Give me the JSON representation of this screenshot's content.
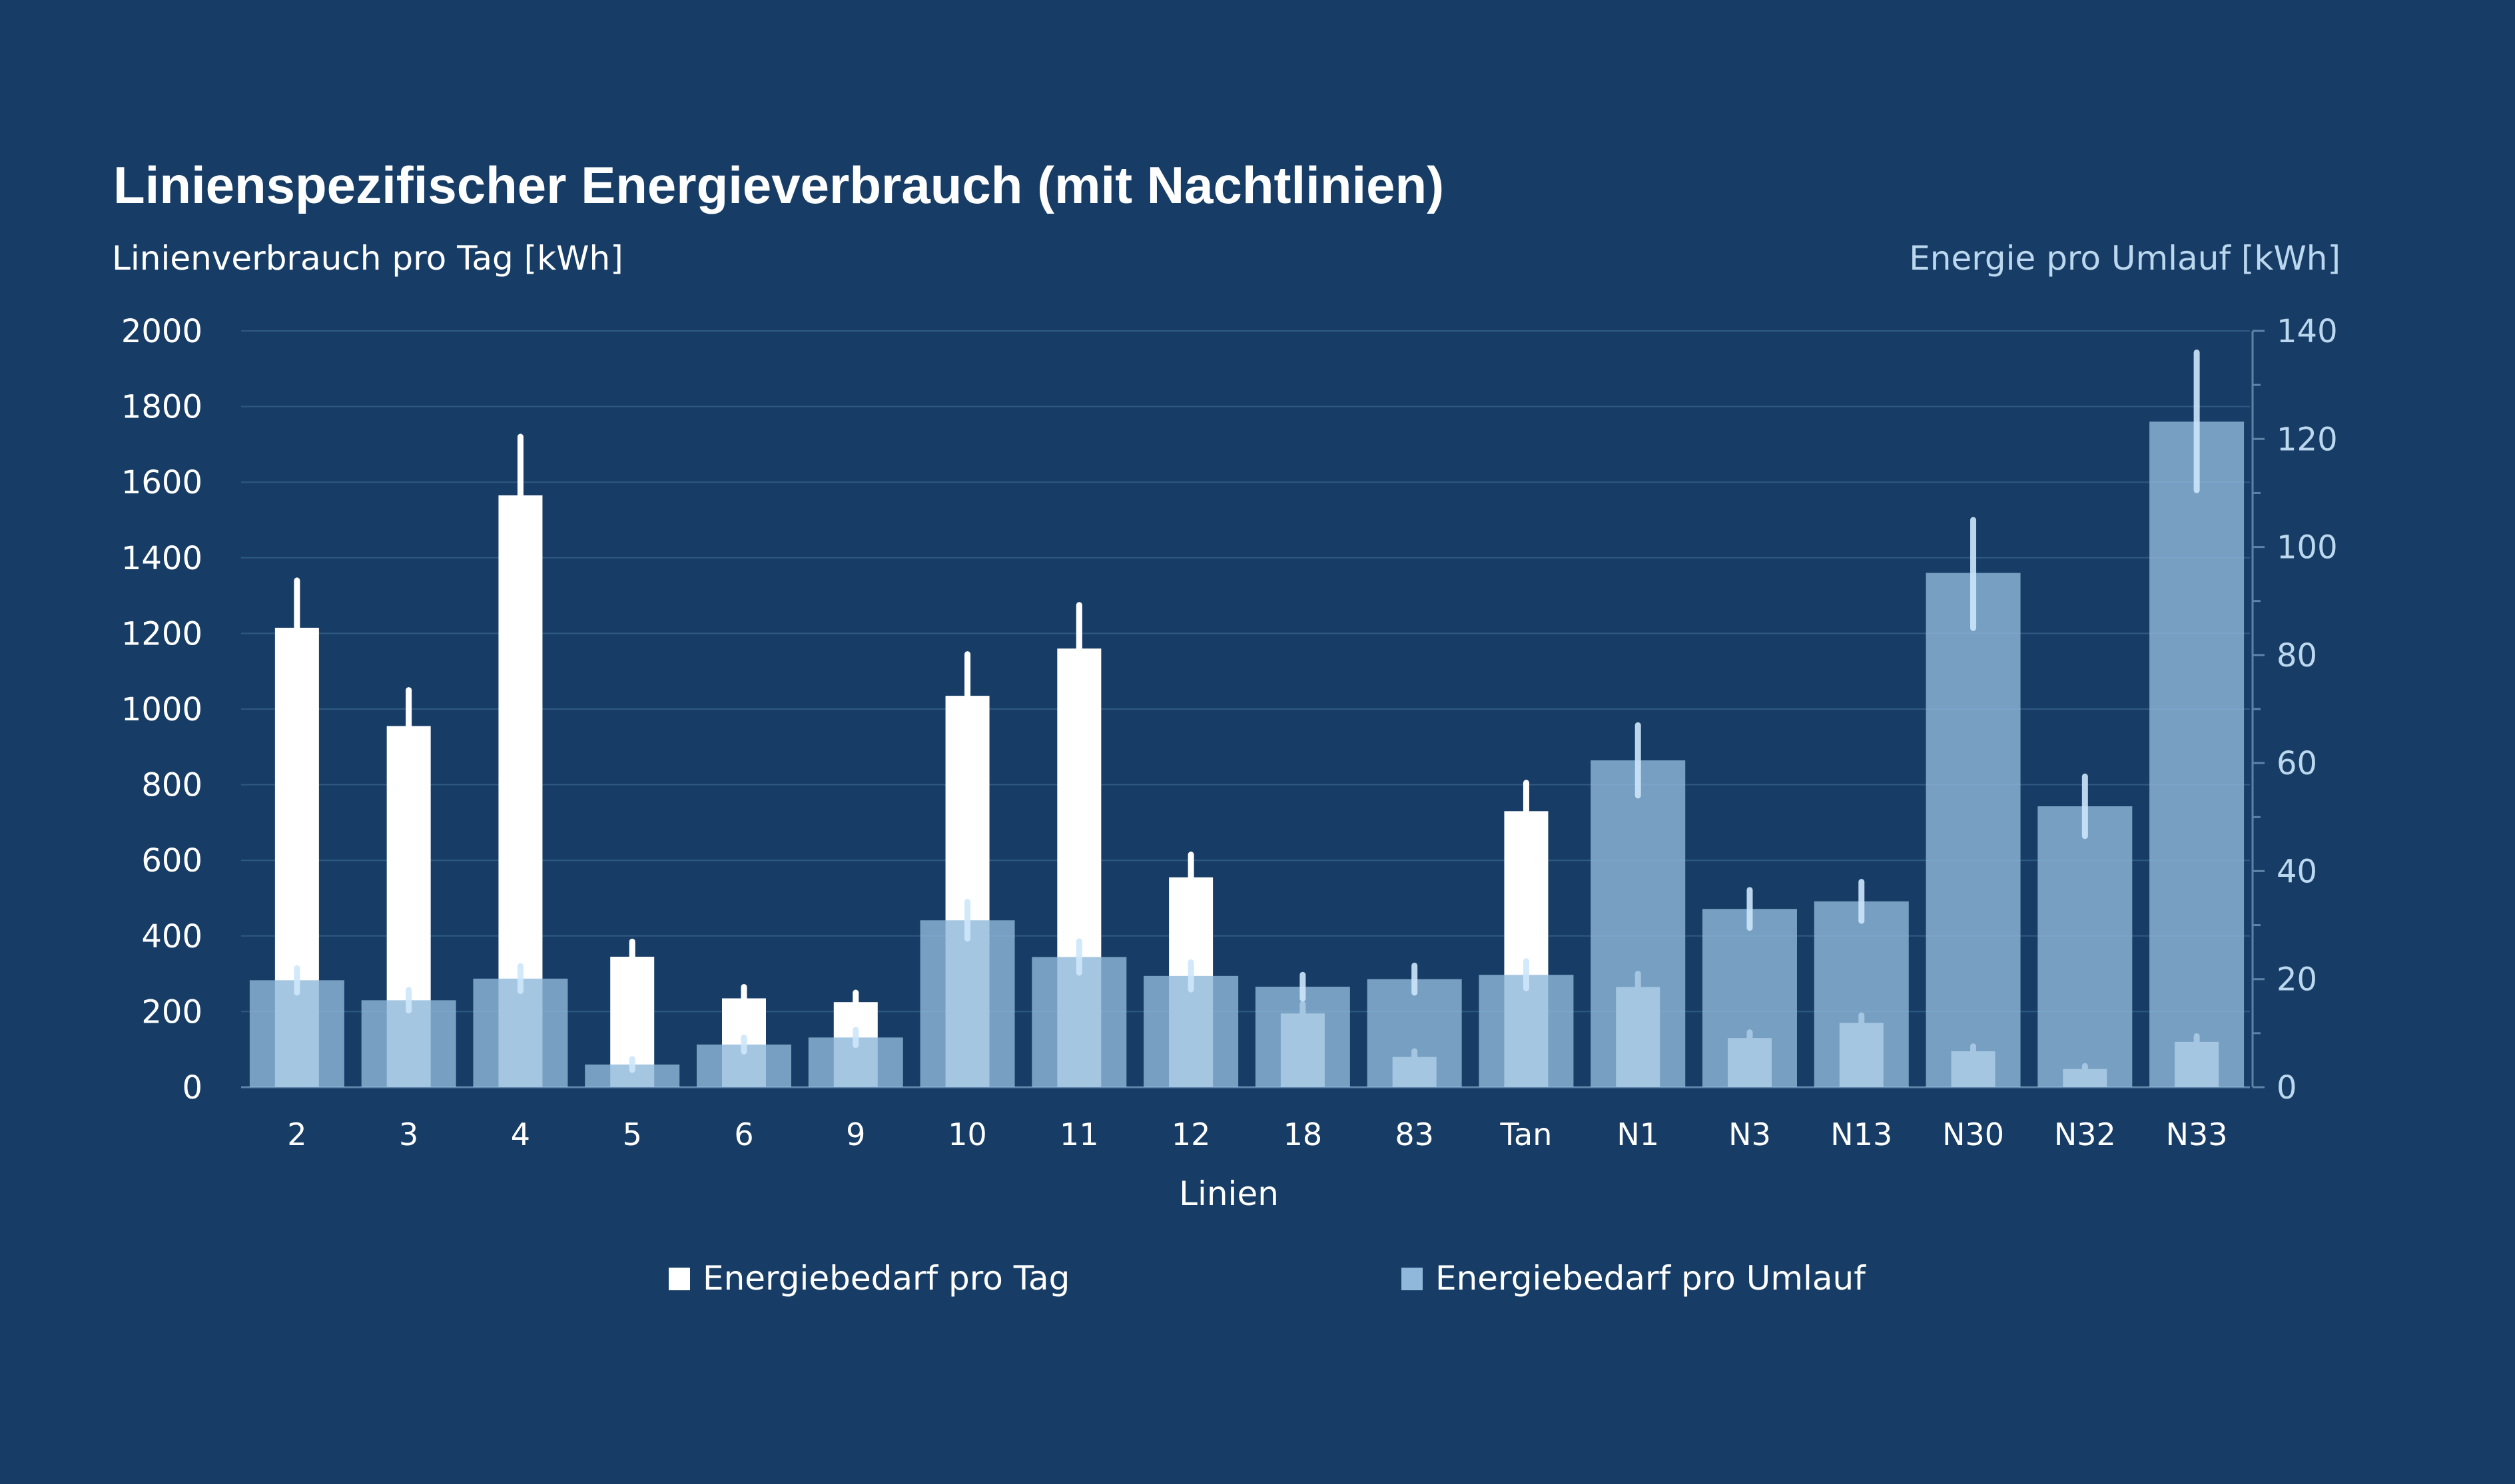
{
  "chart_data": {
    "type": "bar",
    "title": "Linienspezifischer Energieverbrauch (mit Nachtlinien)",
    "xlabel": "Linien",
    "ylabel": "Linienverbrauch pro Tag [kWh]",
    "y2label": "Energie pro Umlauf [kWh]",
    "ylim": [
      0,
      2000
    ],
    "y2lim": [
      0,
      140
    ],
    "yticks": [
      "0",
      "200",
      "400",
      "600",
      "800",
      "1000",
      "1200",
      "1400",
      "1600",
      "1800",
      "2000"
    ],
    "y2ticks": [
      "0",
      "20",
      "40",
      "60",
      "80",
      "100",
      "120",
      "140"
    ],
    "grid": true,
    "legend_position": "bottom",
    "categories": [
      "2",
      "3",
      "4",
      "5",
      "6",
      "9",
      "10",
      "11",
      "12",
      "18",
      "83",
      "Tan",
      "N1",
      "N3",
      "N13",
      "N30",
      "N32",
      "N33"
    ],
    "series": [
      {
        "name": "Energiebedarf pro Tag",
        "axis": "left",
        "color": "#ffffff",
        "values": [
          1215,
          955,
          1565,
          345,
          235,
          225,
          1035,
          1160,
          555,
          195,
          80,
          730,
          265,
          130,
          170,
          95,
          48,
          120
        ],
        "error_low": [
          1090,
          860,
          1410,
          305,
          210,
          200,
          930,
          1045,
          495,
          170,
          65,
          655,
          235,
          110,
          150,
          82,
          40,
          105
        ],
        "error_high": [
          1340,
          1050,
          1720,
          385,
          265,
          250,
          1145,
          1275,
          615,
          220,
          95,
          805,
          300,
          145,
          190,
          108,
          56,
          135
        ]
      },
      {
        "name": "Energiebedarf pro Umlauf",
        "axis": "right",
        "color": "#8fb8da",
        "values": [
          19.8,
          16.1,
          20.1,
          4.2,
          7.9,
          9.2,
          30.9,
          24.1,
          20.6,
          18.6,
          20.0,
          20.8,
          60.5,
          33.0,
          34.4,
          95.2,
          52.0,
          123.2
        ],
        "error_low": [
          17.5,
          14.2,
          17.8,
          3.2,
          6.6,
          7.8,
          27.5,
          21.2,
          18.1,
          16.4,
          17.5,
          18.3,
          54.0,
          29.5,
          30.8,
          85.0,
          46.5,
          110.5
        ],
        "error_high": [
          22.0,
          18.0,
          22.4,
          5.2,
          9.2,
          10.6,
          34.3,
          27.0,
          23.1,
          20.8,
          22.5,
          23.3,
          67.0,
          36.5,
          38.0,
          105.0,
          57.5,
          136.0
        ]
      }
    ]
  }
}
